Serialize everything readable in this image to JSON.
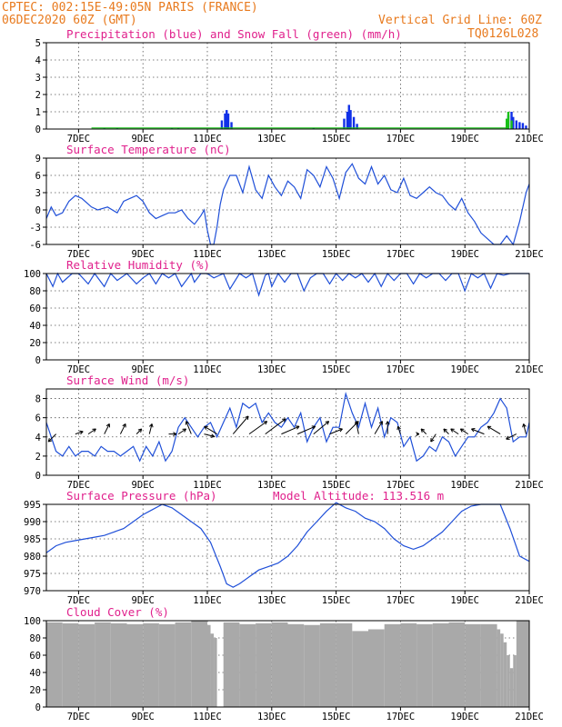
{
  "header": {
    "line1": "CPTEC:    002:15E-49:05N   PARIS (FRANCE)",
    "line2": "06DEC2020 60Z (GMT)",
    "right1": "Vertical Grid Line: 60Z",
    "right2": "TQ0126L028"
  },
  "chart_data": [
    {
      "type": "bar",
      "title": "Precipitation (blue) and Snow Fall (green) (mm/h)",
      "x_ticks": [
        "7DEC",
        "9DEC",
        "11DEC",
        "13DEC",
        "15DEC",
        "17DEC",
        "19DEC",
        "21DEC"
      ],
      "ylim": [
        0,
        5
      ],
      "y_ticks": [
        "0",
        "1",
        "2",
        "3",
        "4",
        "5"
      ],
      "series": [
        {
          "name": "Precipitation (blue)",
          "color": "#1030e8",
          "x": [
            7.8,
            8.2,
            9.9,
            10.1,
            11.45,
            11.55,
            11.6,
            11.65,
            11.75,
            14.3,
            15.25,
            15.35,
            15.4,
            15.45,
            15.55,
            15.65,
            20.35,
            20.45,
            20.5,
            20.6,
            20.7,
            20.8,
            20.9
          ],
          "values": [
            0.05,
            0.05,
            0.05,
            0.05,
            0.5,
            0.9,
            1.1,
            0.9,
            0.4,
            0.08,
            0.6,
            1.0,
            1.4,
            1.1,
            0.7,
            0.3,
            0.8,
            1.0,
            0.7,
            0.5,
            0.4,
            0.35,
            0.2
          ]
        },
        {
          "name": "Snow Fall (green)",
          "color": "#18c018",
          "x": [
            20.3,
            20.35,
            20.45
          ],
          "values": [
            0.6,
            1.0,
            0.5
          ]
        }
      ]
    },
    {
      "type": "line",
      "title": "Surface Temperature (nC)",
      "x_ticks": [
        "7DEC",
        "9DEC",
        "11DEC",
        "13DEC",
        "15DEC",
        "17DEC",
        "19DEC",
        "21DEC"
      ],
      "ylim": [
        -6,
        9
      ],
      "y_ticks": [
        "-6",
        "-3",
        "0",
        "3",
        "6",
        "9"
      ],
      "series": [
        {
          "color": "#1f4fd8",
          "x": [
            6.0,
            6.15,
            6.3,
            6.5,
            6.7,
            6.9,
            7.1,
            7.4,
            7.6,
            7.9,
            8.2,
            8.4,
            8.6,
            8.8,
            9.0,
            9.2,
            9.4,
            9.6,
            9.8,
            10.0,
            10.2,
            10.4,
            10.6,
            10.8,
            10.9,
            11.0,
            11.1,
            11.2,
            11.3,
            11.4,
            11.5,
            11.7,
            11.9,
            12.1,
            12.3,
            12.5,
            12.7,
            12.9,
            13.1,
            13.3,
            13.5,
            13.7,
            13.9,
            14.1,
            14.3,
            14.5,
            14.7,
            14.9,
            15.1,
            15.3,
            15.5,
            15.7,
            15.9,
            16.1,
            16.3,
            16.5,
            16.7,
            16.9,
            17.1,
            17.3,
            17.5,
            17.7,
            17.9,
            18.1,
            18.3,
            18.5,
            18.7,
            18.9,
            19.1,
            19.3,
            19.5,
            19.7,
            19.9,
            20.1,
            20.3,
            20.5,
            20.7,
            20.9,
            21.0
          ],
          "values": [
            -1.5,
            0.5,
            -1.0,
            -0.5,
            1.5,
            2.5,
            2.0,
            0.5,
            0.0,
            0.5,
            -0.5,
            1.5,
            2.0,
            2.5,
            1.5,
            -0.5,
            -1.5,
            -1.0,
            -0.5,
            -0.5,
            0.0,
            -1.5,
            -2.5,
            -1.0,
            0.0,
            -3.5,
            -6.0,
            -6.0,
            -3.0,
            1.0,
            3.5,
            6.0,
            6.0,
            3.0,
            7.5,
            3.5,
            2.0,
            6.0,
            4.0,
            2.5,
            5.0,
            4.0,
            2.0,
            7.0,
            6.0,
            4.0,
            7.5,
            5.5,
            2.0,
            6.5,
            8.0,
            5.5,
            4.5,
            7.5,
            4.5,
            6.0,
            3.5,
            3.0,
            5.5,
            2.5,
            2.0,
            3.0,
            4.0,
            3.0,
            2.5,
            1.0,
            0.0,
            2.0,
            -0.5,
            -2.0,
            -4.0,
            -5.0,
            -6.0,
            -6.0,
            -4.5,
            -6.0,
            -2.0,
            3.0,
            4.5
          ]
        }
      ]
    },
    {
      "type": "line",
      "title": "Relative Humidity (%)",
      "x_ticks": [
        "7DEC",
        "9DEC",
        "11DEC",
        "13DEC",
        "15DEC",
        "17DEC",
        "19DEC",
        "21DEC"
      ],
      "ylim": [
        0,
        100
      ],
      "y_ticks": [
        "0",
        "20",
        "40",
        "60",
        "80",
        "100"
      ],
      "series": [
        {
          "color": "#1f4fd8",
          "x": [
            6.0,
            6.2,
            6.35,
            6.5,
            6.8,
            7.0,
            7.3,
            7.5,
            7.8,
            8.0,
            8.2,
            8.5,
            8.8,
            9.0,
            9.2,
            9.4,
            9.6,
            9.8,
            10.0,
            10.2,
            10.5,
            10.6,
            10.8,
            11.0,
            11.2,
            11.5,
            11.7,
            12.0,
            12.2,
            12.4,
            12.6,
            12.8,
            12.9,
            13.0,
            13.2,
            13.4,
            13.6,
            13.8,
            14.0,
            14.2,
            14.4,
            14.6,
            14.8,
            15.0,
            15.2,
            15.4,
            15.6,
            15.8,
            16.0,
            16.2,
            16.4,
            16.6,
            16.8,
            17.0,
            17.2,
            17.4,
            17.6,
            17.8,
            18.0,
            18.2,
            18.4,
            18.6,
            18.8,
            19.0,
            19.2,
            19.4,
            19.6,
            19.8,
            20.0,
            20.2,
            20.4,
            20.6,
            20.8,
            21.0
          ],
          "values": [
            100,
            85,
            100,
            90,
            100,
            100,
            88,
            100,
            85,
            100,
            92,
            100,
            88,
            95,
            100,
            88,
            100,
            95,
            100,
            85,
            100,
            90,
            100,
            100,
            95,
            100,
            82,
            100,
            95,
            100,
            75,
            98,
            100,
            85,
            100,
            90,
            100,
            100,
            80,
            95,
            100,
            100,
            88,
            100,
            92,
            100,
            95,
            100,
            90,
            100,
            85,
            100,
            92,
            100,
            100,
            88,
            100,
            95,
            100,
            100,
            92,
            100,
            100,
            80,
            100,
            95,
            100,
            83,
            100,
            98,
            100,
            100,
            100,
            100
          ]
        }
      ]
    },
    {
      "type": "line",
      "title": "Surface Wind (m/s)",
      "x_ticks": [
        "7DEC",
        "9DEC",
        "11DEC",
        "13DEC",
        "15DEC",
        "17DEC",
        "19DEC",
        "21DEC"
      ],
      "ylim": [
        0,
        9
      ],
      "y_ticks": [
        "0",
        "2",
        "4",
        "6",
        "8"
      ],
      "series": [
        {
          "color": "#1f4fd8",
          "x": [
            6.0,
            6.15,
            6.3,
            6.5,
            6.7,
            6.9,
            7.1,
            7.3,
            7.5,
            7.7,
            7.9,
            8.1,
            8.3,
            8.5,
            8.7,
            8.9,
            9.1,
            9.3,
            9.5,
            9.7,
            9.9,
            10.1,
            10.3,
            10.5,
            10.7,
            10.9,
            11.1,
            11.3,
            11.5,
            11.7,
            11.9,
            12.1,
            12.3,
            12.5,
            12.7,
            12.9,
            13.1,
            13.3,
            13.5,
            13.7,
            13.9,
            14.1,
            14.3,
            14.5,
            14.7,
            14.9,
            15.1,
            15.3,
            15.5,
            15.7,
            15.9,
            16.1,
            16.3,
            16.5,
            16.7,
            16.9,
            17.1,
            17.3,
            17.5,
            17.7,
            17.9,
            18.1,
            18.3,
            18.5,
            18.7,
            18.9,
            19.1,
            19.3,
            19.5,
            19.7,
            19.9,
            20.1,
            20.3,
            20.5,
            20.7,
            20.9,
            21.0
          ],
          "values": [
            5.5,
            4.0,
            2.5,
            2.0,
            3.0,
            2.0,
            2.5,
            2.5,
            2.0,
            3.0,
            2.5,
            2.5,
            2.0,
            2.5,
            3.0,
            1.5,
            3.0,
            2.0,
            3.5,
            1.5,
            2.5,
            5.0,
            6.0,
            5.0,
            4.0,
            5.0,
            5.5,
            4.0,
            5.5,
            7.0,
            5.0,
            7.5,
            7.0,
            7.5,
            5.5,
            6.5,
            5.5,
            5.0,
            6.0,
            5.0,
            6.5,
            3.5,
            5.0,
            6.0,
            3.5,
            5.0,
            5.0,
            8.5,
            6.5,
            5.0,
            7.5,
            5.0,
            7.0,
            4.0,
            6.0,
            5.5,
            3.0,
            4.0,
            1.5,
            2.0,
            3.0,
            2.5,
            4.0,
            3.5,
            2.0,
            3.0,
            4.0,
            4.0,
            5.0,
            5.5,
            6.5,
            8.0,
            7.0,
            3.5,
            4.0,
            4.0,
            5.5
          ]
        }
      ],
      "wind_arrows": [
        {
          "day": 6.3,
          "u": -3,
          "v": -3
        },
        {
          "day": 6.9,
          "u": 3,
          "v": 1
        },
        {
          "day": 7.3,
          "u": 3,
          "v": 2
        },
        {
          "day": 7.8,
          "u": 2,
          "v": 4
        },
        {
          "day": 8.3,
          "u": 2,
          "v": 4
        },
        {
          "day": 8.8,
          "u": 2,
          "v": 2
        },
        {
          "day": 9.2,
          "u": 1,
          "v": 4
        },
        {
          "day": 9.8,
          "u": 3,
          "v": 0
        },
        {
          "day": 10.1,
          "u": 3,
          "v": 2
        },
        {
          "day": 10.5,
          "u": -2,
          "v": 5
        },
        {
          "day": 10.9,
          "u": 4,
          "v": -1
        },
        {
          "day": 11.3,
          "u": -5,
          "v": 3
        },
        {
          "day": 11.8,
          "u": 6,
          "v": 7
        },
        {
          "day": 12.3,
          "u": 7,
          "v": 5
        },
        {
          "day": 12.8,
          "u": 8,
          "v": 6
        },
        {
          "day": 13.3,
          "u": 7,
          "v": 3
        },
        {
          "day": 13.8,
          "u": 7,
          "v": 3
        },
        {
          "day": 14.3,
          "u": 6,
          "v": 5
        },
        {
          "day": 14.8,
          "u": 5,
          "v": 2
        },
        {
          "day": 15.3,
          "u": 5,
          "v": 5
        },
        {
          "day": 15.7,
          "u": -1,
          "v": 5
        },
        {
          "day": 16.2,
          "u": 3,
          "v": 5
        },
        {
          "day": 16.6,
          "u": 0,
          "v": 5
        },
        {
          "day": 17.0,
          "u": -1,
          "v": 3
        },
        {
          "day": 17.5,
          "u": 1,
          "v": 0
        },
        {
          "day": 17.8,
          "u": -2,
          "v": 2
        },
        {
          "day": 18.1,
          "u": -2,
          "v": -3
        },
        {
          "day": 18.5,
          "u": -2,
          "v": 2
        },
        {
          "day": 18.8,
          "u": -3,
          "v": 2
        },
        {
          "day": 19.1,
          "u": -3,
          "v": 2
        },
        {
          "day": 19.6,
          "u": -5,
          "v": 2
        },
        {
          "day": 20.1,
          "u": -5,
          "v": 3
        },
        {
          "day": 20.6,
          "u": -4,
          "v": -2
        },
        {
          "day": 20.9,
          "u": -1,
          "v": 4
        }
      ]
    },
    {
      "type": "line",
      "title": "Surface Pressure (hPa)",
      "annotation": "Model Altitude: 113.516 m",
      "x_ticks": [
        "7DEC",
        "9DEC",
        "11DEC",
        "13DEC",
        "15DEC",
        "17DEC",
        "19DEC",
        "21DEC"
      ],
      "ylim": [
        970,
        995
      ],
      "y_ticks": [
        "970",
        "975",
        "980",
        "985",
        "990",
        "995"
      ],
      "series": [
        {
          "color": "#1f4fd8",
          "x": [
            6.0,
            6.3,
            6.6,
            6.9,
            7.2,
            7.5,
            7.8,
            8.1,
            8.4,
            8.7,
            9.0,
            9.3,
            9.6,
            9.9,
            10.2,
            10.5,
            10.8,
            11.1,
            11.4,
            11.6,
            11.8,
            12.0,
            12.3,
            12.6,
            12.9,
            13.2,
            13.5,
            13.8,
            14.1,
            14.4,
            14.7,
            15.0,
            15.3,
            15.6,
            15.9,
            16.2,
            16.5,
            16.8,
            17.1,
            17.4,
            17.7,
            18.0,
            18.3,
            18.6,
            18.9,
            19.2,
            19.5,
            19.8,
            20.1,
            20.4,
            20.7,
            21.0
          ],
          "values": [
            981,
            983,
            984,
            984.5,
            985,
            985.5,
            986,
            987,
            988,
            990,
            992,
            993.5,
            995,
            994,
            992,
            990,
            988,
            984,
            977,
            972,
            971,
            972,
            974,
            976,
            977,
            978,
            980,
            983,
            987,
            990,
            993,
            995.5,
            994,
            993,
            991,
            990,
            988,
            985,
            983,
            982,
            983,
            985,
            987,
            990,
            993,
            994.5,
            995,
            995,
            995,
            988,
            980,
            978.5
          ]
        }
      ]
    },
    {
      "type": "bar",
      "title": "Cloud Cover (%)",
      "x_ticks": [
        "7DEC",
        "9DEC",
        "11DEC",
        "13DEC",
        "15DEC",
        "17DEC",
        "19DEC",
        "21DEC"
      ],
      "ylim": [
        0,
        100
      ],
      "y_ticks": [
        "0",
        "20",
        "40",
        "60",
        "80",
        "100"
      ],
      "series": [
        {
          "color": "#a9a9a9",
          "x": [
            6.0,
            6.5,
            7.0,
            7.5,
            8.0,
            8.5,
            9.0,
            9.5,
            10.0,
            10.5,
            11.0,
            11.1,
            11.2,
            11.3,
            11.5,
            12.0,
            12.5,
            13.0,
            13.5,
            14.0,
            14.5,
            15.0,
            15.5,
            16.0,
            16.5,
            17.0,
            17.5,
            18.0,
            18.5,
            19.0,
            19.5,
            20.0,
            20.1,
            20.2,
            20.3,
            20.4,
            20.5,
            20.6,
            21.0
          ],
          "values": [
            98,
            97,
            96,
            98,
            97,
            96,
            97,
            96,
            98,
            100,
            95,
            85,
            80,
            0,
            98,
            96,
            97,
            98,
            96,
            95,
            97,
            97,
            88,
            90,
            96,
            97,
            96,
            97,
            98,
            96,
            96,
            90,
            85,
            75,
            60,
            45,
            60,
            100,
            100
          ]
        }
      ]
    }
  ]
}
